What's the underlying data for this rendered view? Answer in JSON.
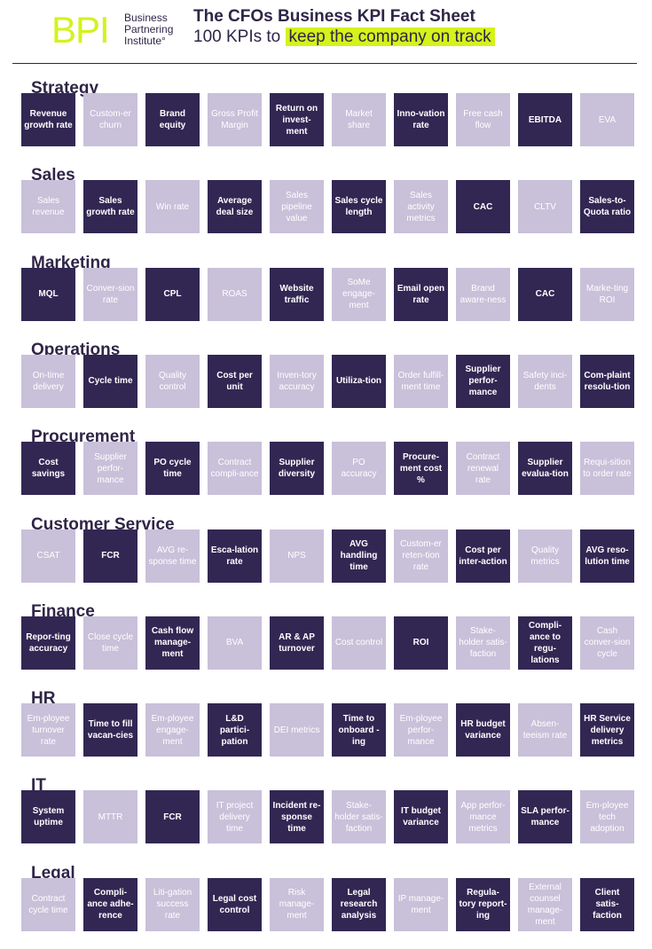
{
  "header": {
    "logo_mark": "BPI",
    "logo_lines": [
      "Business",
      "Partnering",
      "Institute°"
    ],
    "title": "The CFOs Business KPI Fact Sheet",
    "subtitle_prefix": "100 KPIs to ",
    "subtitle_highlight": "keep the company on track"
  },
  "colors": {
    "dark_tile": "#322753",
    "light_tile": "#c9c0d9",
    "accent": "#d4f21c",
    "text": "#2f2547"
  },
  "sections": [
    {
      "title": "Strategy",
      "tiles": [
        {
          "label": "Revenue growth rate",
          "dark": true
        },
        {
          "label": "Custom-er churn",
          "dark": false
        },
        {
          "label": "Brand equity",
          "dark": true
        },
        {
          "label": "Gross Profit Margin",
          "dark": false
        },
        {
          "label": "Return on invest-ment",
          "dark": true
        },
        {
          "label": "Market share",
          "dark": false
        },
        {
          "label": "Inno-vation rate",
          "dark": true
        },
        {
          "label": "Free cash flow",
          "dark": false
        },
        {
          "label": "EBITDA",
          "dark": true
        },
        {
          "label": "EVA",
          "dark": false
        }
      ]
    },
    {
      "title": "Sales",
      "tiles": [
        {
          "label": "Sales revenue",
          "dark": false
        },
        {
          "label": "Sales growth rate",
          "dark": true
        },
        {
          "label": "Win rate",
          "dark": false
        },
        {
          "label": "Average deal size",
          "dark": true
        },
        {
          "label": "Sales pipeline value",
          "dark": false
        },
        {
          "label": "Sales cycle length",
          "dark": true
        },
        {
          "label": "Sales activity metrics",
          "dark": false
        },
        {
          "label": "CAC",
          "dark": true
        },
        {
          "label": "CLTV",
          "dark": false
        },
        {
          "label": "Sales-to-Quota ratio",
          "dark": true
        }
      ]
    },
    {
      "title": "Marketing",
      "tiles": [
        {
          "label": "MQL",
          "dark": true
        },
        {
          "label": "Conver-sion rate",
          "dark": false
        },
        {
          "label": "CPL",
          "dark": true
        },
        {
          "label": "ROAS",
          "dark": false
        },
        {
          "label": "Website traffic",
          "dark": true
        },
        {
          "label": "SoMe engage-ment",
          "dark": false
        },
        {
          "label": "Email open rate",
          "dark": true
        },
        {
          "label": "Brand aware-ness",
          "dark": false
        },
        {
          "label": "CAC",
          "dark": true
        },
        {
          "label": "Marke-ting ROI",
          "dark": false
        }
      ]
    },
    {
      "title": "Operations",
      "tiles": [
        {
          "label": "On-time delivery",
          "dark": false
        },
        {
          "label": "Cycle time",
          "dark": true
        },
        {
          "label": "Quality control",
          "dark": false
        },
        {
          "label": "Cost per unit",
          "dark": true
        },
        {
          "label": "Inven-tory accuracy",
          "dark": false
        },
        {
          "label": "Utiliza-tion",
          "dark": true
        },
        {
          "label": "Order fulfill-ment time",
          "dark": false
        },
        {
          "label": "Supplier perfor-mance",
          "dark": true
        },
        {
          "label": "Safety inci-dents",
          "dark": false
        },
        {
          "label": "Com-plaint resolu-tion",
          "dark": true
        }
      ]
    },
    {
      "title": "Procurement",
      "tiles": [
        {
          "label": "Cost savings",
          "dark": true
        },
        {
          "label": "Supplier perfor-mance",
          "dark": false
        },
        {
          "label": "PO cycle time",
          "dark": true
        },
        {
          "label": "Contract compli-ance",
          "dark": false
        },
        {
          "label": "Supplier diversity",
          "dark": true
        },
        {
          "label": "PO accuracy",
          "dark": false
        },
        {
          "label": "Procure-ment cost %",
          "dark": true
        },
        {
          "label": "Contract renewal rate",
          "dark": false
        },
        {
          "label": "Supplier evalua-tion",
          "dark": true
        },
        {
          "label": "Requi-sition to order rate",
          "dark": false
        }
      ]
    },
    {
      "title": "Customer Service",
      "tiles": [
        {
          "label": "CSAT",
          "dark": false
        },
        {
          "label": "FCR",
          "dark": true
        },
        {
          "label": "AVG re-sponse time",
          "dark": false
        },
        {
          "label": "Esca-lation rate",
          "dark": true
        },
        {
          "label": "NPS",
          "dark": false
        },
        {
          "label": "AVG handling time",
          "dark": true
        },
        {
          "label": "Custom-er reten-tion rate",
          "dark": false
        },
        {
          "label": "Cost per inter-action",
          "dark": true
        },
        {
          "label": "Quality metrics",
          "dark": false
        },
        {
          "label": "AVG reso-lution time",
          "dark": true
        }
      ]
    },
    {
      "title": "Finance",
      "tiles": [
        {
          "label": "Repor-ting accuracy",
          "dark": true
        },
        {
          "label": "Close cycle time",
          "dark": false
        },
        {
          "label": "Cash flow manage-ment",
          "dark": true
        },
        {
          "label": "BVA",
          "dark": false
        },
        {
          "label": "AR & AP turnover",
          "dark": true
        },
        {
          "label": "Cost control",
          "dark": false
        },
        {
          "label": "ROI",
          "dark": true
        },
        {
          "label": "Stake-holder satis-faction",
          "dark": false
        },
        {
          "label": "Compli-ance to regu-lations",
          "dark": true
        },
        {
          "label": "Cash conver-sion cycle",
          "dark": false
        }
      ]
    },
    {
      "title": "HR",
      "tiles": [
        {
          "label": "Em-ployee turnover rate",
          "dark": false
        },
        {
          "label": "Time to fill vacan-cies",
          "dark": true
        },
        {
          "label": "Em-ployee engage-ment",
          "dark": false
        },
        {
          "label": "L&D partici-pation",
          "dark": true
        },
        {
          "label": "DEI metrics",
          "dark": false
        },
        {
          "label": "Time to onboard -ing",
          "dark": true
        },
        {
          "label": "Em-ployee perfor-mance",
          "dark": false
        },
        {
          "label": "HR budget variance",
          "dark": true
        },
        {
          "label": "Absen-teeism rate",
          "dark": false
        },
        {
          "label": "HR Service delivery metrics",
          "dark": true
        }
      ]
    },
    {
      "title": "IT",
      "tiles": [
        {
          "label": "System uptime",
          "dark": true
        },
        {
          "label": "MTTR",
          "dark": false
        },
        {
          "label": "FCR",
          "dark": true
        },
        {
          "label": "IT project delivery time",
          "dark": false
        },
        {
          "label": "Incident re-sponse time",
          "dark": true
        },
        {
          "label": "Stake-holder satis-faction",
          "dark": false
        },
        {
          "label": "IT budget variance",
          "dark": true
        },
        {
          "label": "App perfor-mance metrics",
          "dark": false
        },
        {
          "label": "SLA perfor-mance",
          "dark": true
        },
        {
          "label": "Em-ployee tech adoption",
          "dark": false
        }
      ]
    },
    {
      "title": "Legal",
      "tiles": [
        {
          "label": "Contract cycle time",
          "dark": false
        },
        {
          "label": "Compli-ance adhe-rence",
          "dark": true
        },
        {
          "label": "Liti-gation success rate",
          "dark": false
        },
        {
          "label": "Legal cost control",
          "dark": true
        },
        {
          "label": "Risk manage-ment",
          "dark": false
        },
        {
          "label": "Legal research analysis",
          "dark": true
        },
        {
          "label": "IP manage-ment",
          "dark": false
        },
        {
          "label": "Regula-tory report-ing",
          "dark": true
        },
        {
          "label": "External counsel manage-ment",
          "dark": false
        },
        {
          "label": "Client satis-faction",
          "dark": true
        }
      ]
    }
  ]
}
